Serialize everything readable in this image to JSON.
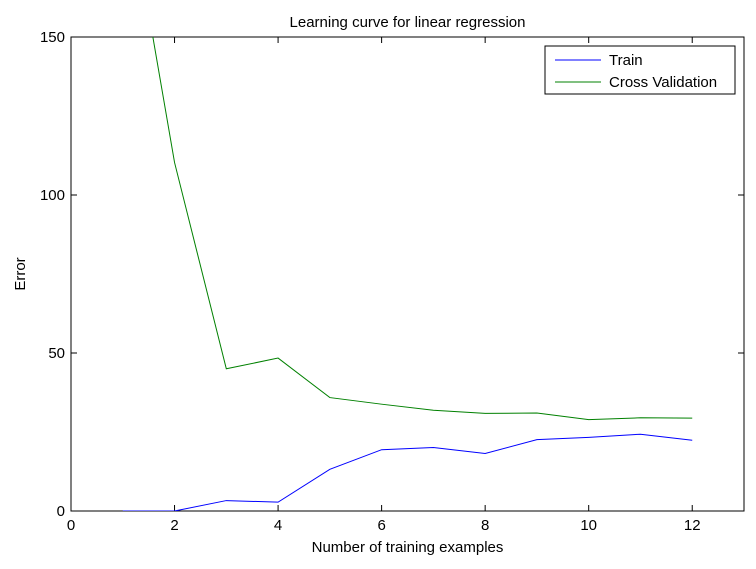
{
  "chart_data": {
    "type": "line",
    "title": "Learning curve for linear regression",
    "xlabel": "Number of training examples",
    "ylabel": "Error",
    "xlim": [
      0,
      13
    ],
    "ylim": [
      0,
      150
    ],
    "xticks": [
      0,
      2,
      4,
      6,
      8,
      10,
      12
    ],
    "yticks": [
      0,
      50,
      100,
      150
    ],
    "grid": false,
    "legend_position": "top-right",
    "series": [
      {
        "name": "Train",
        "color": "#0000ff",
        "x": [
          1,
          2,
          3,
          4,
          5,
          6,
          7,
          8,
          9,
          10,
          11,
          12
        ],
        "y": [
          0.0,
          0.0,
          3.3,
          2.8,
          13.2,
          19.4,
          20.1,
          18.2,
          22.6,
          23.3,
          24.3,
          22.4
        ]
      },
      {
        "name": "Cross Validation",
        "color": "#008000",
        "x": [
          1,
          2,
          3,
          4,
          5,
          6,
          7,
          8,
          9,
          10,
          11,
          12
        ],
        "y": [
          205.1,
          110.3,
          45.0,
          48.4,
          35.9,
          33.8,
          31.9,
          30.9,
          31.0,
          28.9,
          29.5,
          29.4
        ]
      }
    ]
  }
}
